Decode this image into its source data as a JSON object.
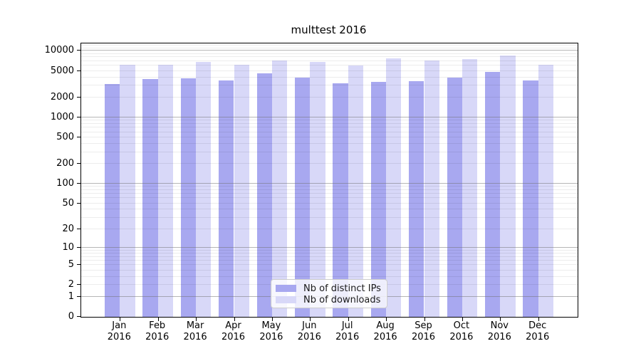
{
  "chart_data": {
    "type": "bar",
    "title": "multtest 2016",
    "categories": [
      "Jan",
      "Feb",
      "Mar",
      "Apr",
      "May",
      "Jun",
      "Jul",
      "Aug",
      "Sep",
      "Oct",
      "Nov",
      "Dec"
    ],
    "category_year": "2016",
    "series": [
      {
        "name": "Nb of distinct IPs",
        "key": "distinct-ips",
        "color": "#a8a8f0",
        "values": [
          3160,
          3760,
          3820,
          3600,
          4550,
          3950,
          3270,
          3380,
          3500,
          4010,
          4770,
          3600
        ]
      },
      {
        "name": "Nb of downloads",
        "key": "downloads",
        "color": "#d8d8f8",
        "values": [
          6230,
          6230,
          6870,
          6230,
          7200,
          6870,
          6070,
          7700,
          7100,
          7590,
          8540,
          6230
        ]
      }
    ],
    "xlabel": "",
    "ylabel": "",
    "yscale": "log1p",
    "ylim": [
      0,
      12900
    ],
    "y_ticks": [
      0,
      1,
      2,
      5,
      10,
      20,
      50,
      100,
      200,
      500,
      1000,
      2000,
      5000,
      10000
    ],
    "grid": {
      "major": [
        1,
        10,
        100,
        1000,
        10000
      ],
      "minor_decades": [
        1,
        10,
        100,
        1000
      ],
      "minor_multiples": [
        2,
        3,
        4,
        5,
        6,
        7,
        8,
        9
      ],
      "minor_extra": [
        11000,
        12000
      ]
    },
    "legend_position": "lower center"
  },
  "colors": {
    "bar_distinct_ips": "#a8a8f0",
    "bar_downloads": "#d8d8f8",
    "major_grid": "#c3c3c3",
    "minor_grid": "#ececec",
    "axis": "#000000",
    "legend_border": "#cccccc"
  }
}
